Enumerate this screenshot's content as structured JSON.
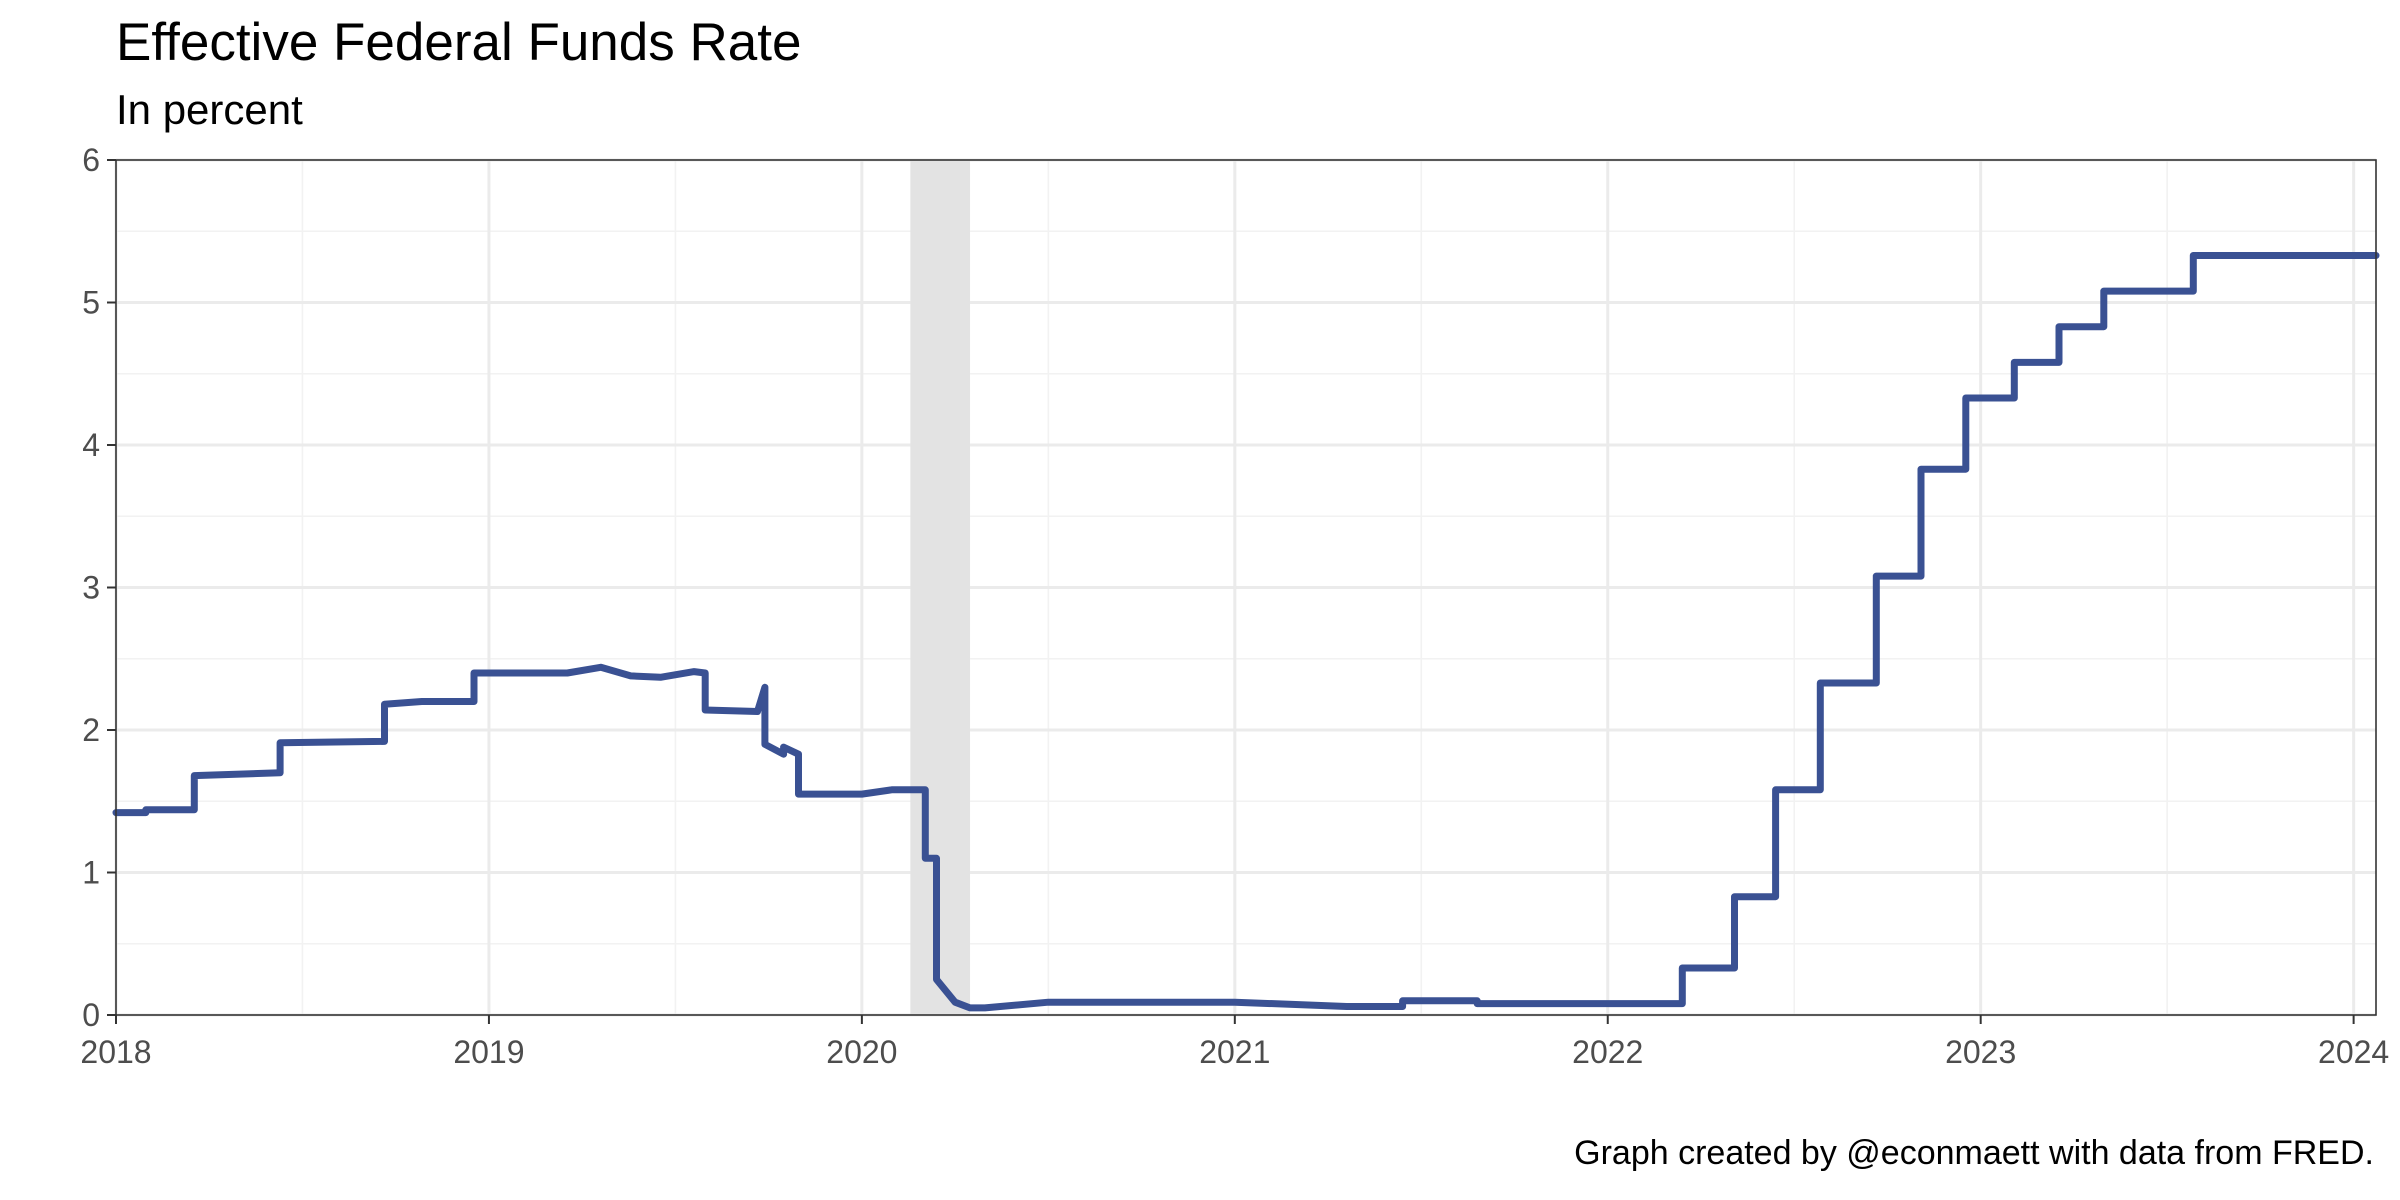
{
  "title": "Effective Federal Funds Rate",
  "subtitle": "In percent",
  "caption": "Graph created by @econmaett with data from FRED.",
  "chart_data": {
    "type": "line",
    "title": "Effective Federal Funds Rate",
    "subtitle": "In percent",
    "xlabel": "",
    "ylabel": "",
    "xlim": [
      2018.0,
      2024.06
    ],
    "ylim": [
      0,
      6
    ],
    "x_ticks": [
      "2018",
      "2019",
      "2020",
      "2021",
      "2022",
      "2023",
      "2024"
    ],
    "y_ticks": [
      "0",
      "1",
      "2",
      "3",
      "4",
      "5",
      "6"
    ],
    "grid": true,
    "legend": "none",
    "recession_shading": [
      2020.13,
      2020.29
    ],
    "colors": {
      "line": "#3a5193",
      "recession": "#e3e3e3",
      "grid": "#ebebeb"
    },
    "series": [
      {
        "x": [
          2018.0,
          2018.08,
          2018.08,
          2018.21,
          2018.21,
          2018.44,
          2018.44,
          2018.72,
          2018.72,
          2018.82,
          2018.96,
          2018.96,
          2019.21,
          2019.3,
          2019.38,
          2019.46,
          2019.55,
          2019.58,
          2019.58,
          2019.72,
          2019.74,
          2019.74,
          2019.79,
          2019.79,
          2019.83,
          2019.83,
          2020.0,
          2020.08,
          2020.17,
          2020.17,
          2020.2,
          2020.2,
          2020.25,
          2020.29,
          2020.33,
          2020.5,
          2020.6,
          2020.9,
          2021.0,
          2021.3,
          2021.45,
          2021.45,
          2021.65,
          2021.65,
          2022.2,
          2022.2,
          2022.34,
          2022.34,
          2022.45,
          2022.45,
          2022.57,
          2022.57,
          2022.72,
          2022.72,
          2022.84,
          2022.84,
          2022.96,
          2022.96,
          2023.09,
          2023.09,
          2023.21,
          2023.21,
          2023.33,
          2023.33,
          2023.57,
          2023.57,
          2024.06
        ],
        "y": [
          1.42,
          1.42,
          1.44,
          1.44,
          1.68,
          1.7,
          1.91,
          1.92,
          2.18,
          2.2,
          2.2,
          2.4,
          2.4,
          2.44,
          2.38,
          2.37,
          2.41,
          2.4,
          2.14,
          2.13,
          2.3,
          1.9,
          1.83,
          1.88,
          1.83,
          1.55,
          1.55,
          1.58,
          1.58,
          1.1,
          1.1,
          0.25,
          0.09,
          0.05,
          0.05,
          0.09,
          0.09,
          0.09,
          0.09,
          0.06,
          0.06,
          0.1,
          0.1,
          0.08,
          0.08,
          0.33,
          0.33,
          0.83,
          0.83,
          1.58,
          1.58,
          2.33,
          2.33,
          3.08,
          3.08,
          3.83,
          3.83,
          4.33,
          4.33,
          4.58,
          4.58,
          4.83,
          4.83,
          5.08,
          5.08,
          5.33,
          5.33
        ]
      }
    ]
  }
}
